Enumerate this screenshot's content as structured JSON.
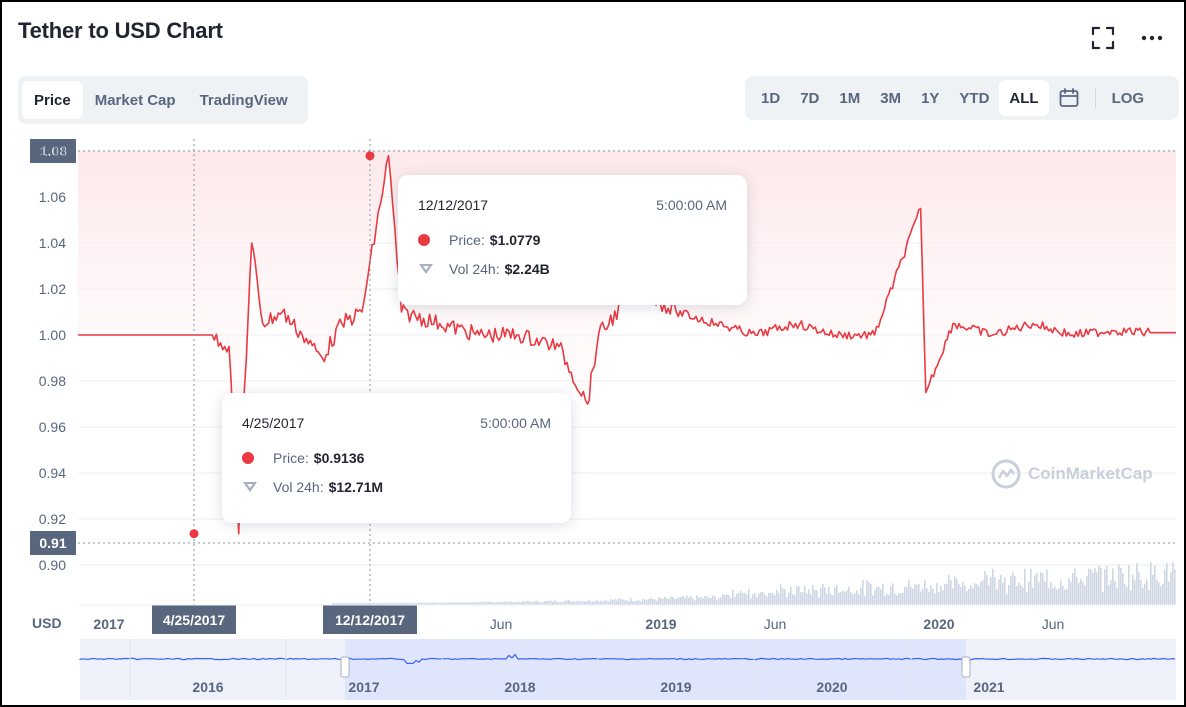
{
  "title": "Tether to USD Chart",
  "icons": {
    "fullscreen": "fullscreen-icon",
    "more": "more-horizontal-icon",
    "calendar": "calendar-icon"
  },
  "tabs": [
    {
      "label": "Price",
      "active": true
    },
    {
      "label": "Market Cap",
      "active": false
    },
    {
      "label": "TradingView",
      "active": false
    }
  ],
  "ranges": [
    {
      "label": "1D",
      "active": false
    },
    {
      "label": "7D",
      "active": false
    },
    {
      "label": "1M",
      "active": false
    },
    {
      "label": "3M",
      "active": false
    },
    {
      "label": "1Y",
      "active": false
    },
    {
      "label": "YTD",
      "active": false
    },
    {
      "label": "ALL",
      "active": true
    }
  ],
  "log_label": "LOG",
  "colors": {
    "line": "#ea3943",
    "fill_top": "#fde6e8",
    "grid": "#bcc3cf",
    "axis_text": "#58667e",
    "badge": "#58667e",
    "volume": "#cfd6e4",
    "nav_line": "#3861fb",
    "nav_fill": "#dfe5fb"
  },
  "watermark": "CoinMarketCap",
  "chart_data": {
    "type": "line",
    "currency": "USD",
    "y_ticks": [
      "1.08",
      "1.06",
      "1.04",
      "1.02",
      "1.00",
      "0.98",
      "0.96",
      "0.94",
      "0.92",
      "0.90"
    ],
    "ylim": [
      0.89,
      1.09
    ],
    "x_ticks": [
      "2017",
      "Jun",
      "2019",
      "Jun",
      "2020",
      "Jun"
    ],
    "highlights": [
      {
        "date": "4/25/2017",
        "price_label": "0.91",
        "price": 0.9136
      },
      {
        "date": "12/12/2017",
        "price_label": "1.08",
        "price": 1.0779
      }
    ],
    "series": [
      {
        "x": [
          "2017-01-01",
          "2017-03-15",
          "2017-04-10",
          "2017-04-25",
          "2017-05-01",
          "2017-05-15",
          "2017-06-01",
          "2017-07-01",
          "2017-08-01",
          "2017-09-01",
          "2017-10-01",
          "2017-11-01",
          "2017-12-12",
          "2018-01-01",
          "2018-03-01",
          "2018-05-01",
          "2018-07-01",
          "2018-09-01",
          "2018-10-15",
          "2018-11-01",
          "2018-12-15",
          "2019-01-01",
          "2019-03-01",
          "2019-05-01",
          "2019-07-01",
          "2019-09-01",
          "2019-11-01",
          "2020-01-01",
          "2020-03-12",
          "2020-03-20",
          "2020-05-01",
          "2020-07-01",
          "2020-09-01",
          "2020-11-01",
          "2021-01-01",
          "2021-03-01"
        ],
        "values": [
          1.0,
          1.0,
          0.995,
          0.9136,
          0.96,
          1.04,
          1.005,
          1.01,
          1.0,
          0.99,
          1.005,
          1.01,
          1.0779,
          1.01,
          1.005,
          1.0,
          1.0,
          0.995,
          0.97,
          1.0,
          1.015,
          1.02,
          1.01,
          1.005,
          1.0,
          1.005,
          1.0,
          1.0,
          1.055,
          0.975,
          1.005,
          1.0,
          1.005,
          1.0,
          1.002,
          1.001
        ]
      }
    ]
  },
  "tooltips": [
    {
      "date": "12/12/2017",
      "time": "5:00:00 AM",
      "price_label": "Price:",
      "price": "$1.0779",
      "vol_label": "Vol 24h:",
      "vol": "$2.24B"
    },
    {
      "date": "4/25/2017",
      "time": "5:00:00 AM",
      "price_label": "Price:",
      "price": "$0.9136",
      "vol_label": "Vol 24h:",
      "vol": "$12.71M"
    }
  ],
  "navigator": {
    "labels": [
      "2016",
      "2017",
      "2018",
      "2019",
      "2020",
      "2021"
    ]
  }
}
